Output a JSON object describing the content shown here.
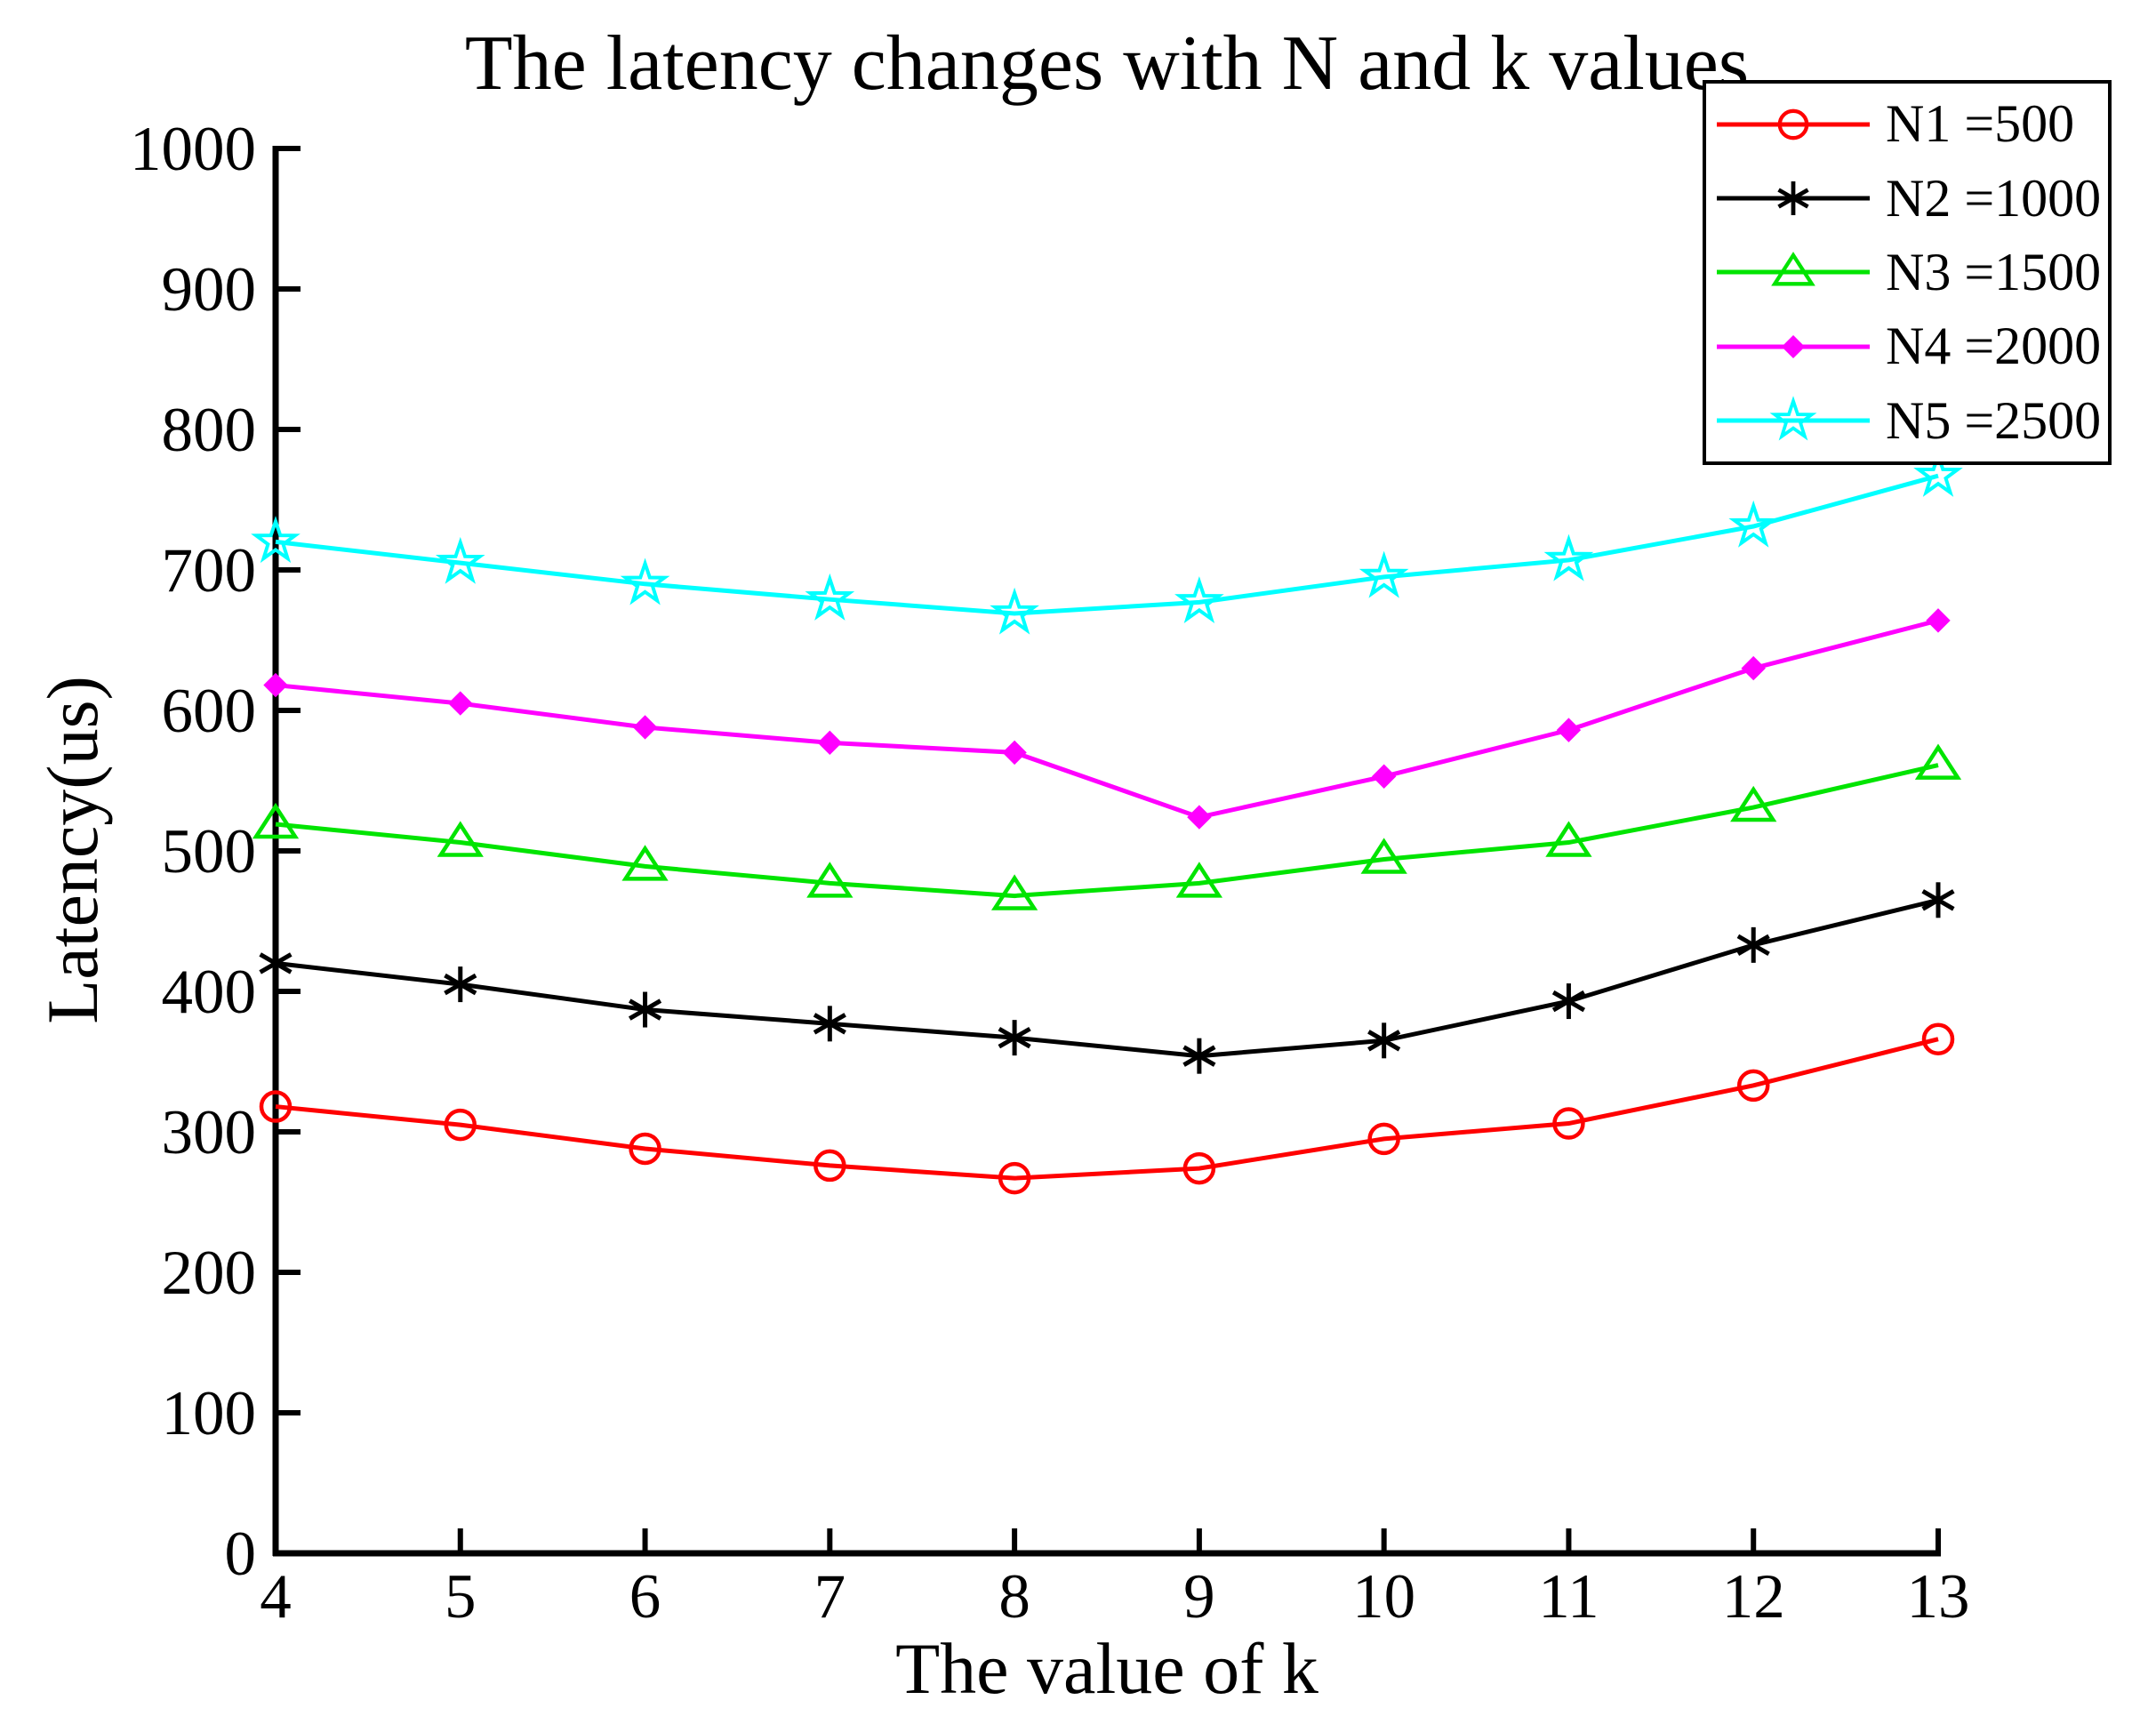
{
  "figure": {
    "background": "#ffffff",
    "axis_color": "#000000"
  },
  "chart_data": {
    "type": "line",
    "title": "The latency changes with N and k values",
    "xlabel": "The value of k",
    "ylabel": "Latency(us)",
    "x": [
      4,
      5,
      6,
      7,
      8,
      9,
      10,
      11,
      12,
      13
    ],
    "xticks": [
      4,
      5,
      6,
      7,
      8,
      9,
      10,
      11,
      12,
      13
    ],
    "yticks": [
      0,
      100,
      200,
      300,
      400,
      500,
      600,
      700,
      800,
      900,
      1000
    ],
    "xlim": [
      4,
      13
    ],
    "ylim": [
      0,
      1000
    ],
    "grid": false,
    "legend_position": "top-right",
    "series": [
      {
        "name": "N1 =500",
        "color": "#ff0000",
        "marker": "circle",
        "values": [
          318,
          305,
          288,
          276,
          267,
          274,
          295,
          306,
          333,
          366
        ]
      },
      {
        "name": "N2 =1000",
        "color": "#000000",
        "marker": "asterisk",
        "values": [
          420,
          405,
          387,
          377,
          367,
          354,
          365,
          393,
          433,
          465
        ]
      },
      {
        "name": "N3 =1500",
        "color": "#00e400",
        "marker": "triangle-up",
        "values": [
          519,
          506,
          489,
          477,
          468,
          477,
          494,
          506,
          531,
          561
        ]
      },
      {
        "name": "N4 =2000",
        "color": "#ff00ff",
        "marker": "diamond-filled",
        "values": [
          618,
          605,
          588,
          577,
          570,
          524,
          553,
          586,
          630,
          664
        ]
      },
      {
        "name": "N5 =2500",
        "color": "#00ffff",
        "marker": "pentagram",
        "values": [
          720,
          705,
          690,
          679,
          669,
          677,
          695,
          707,
          731,
          767
        ]
      }
    ]
  }
}
